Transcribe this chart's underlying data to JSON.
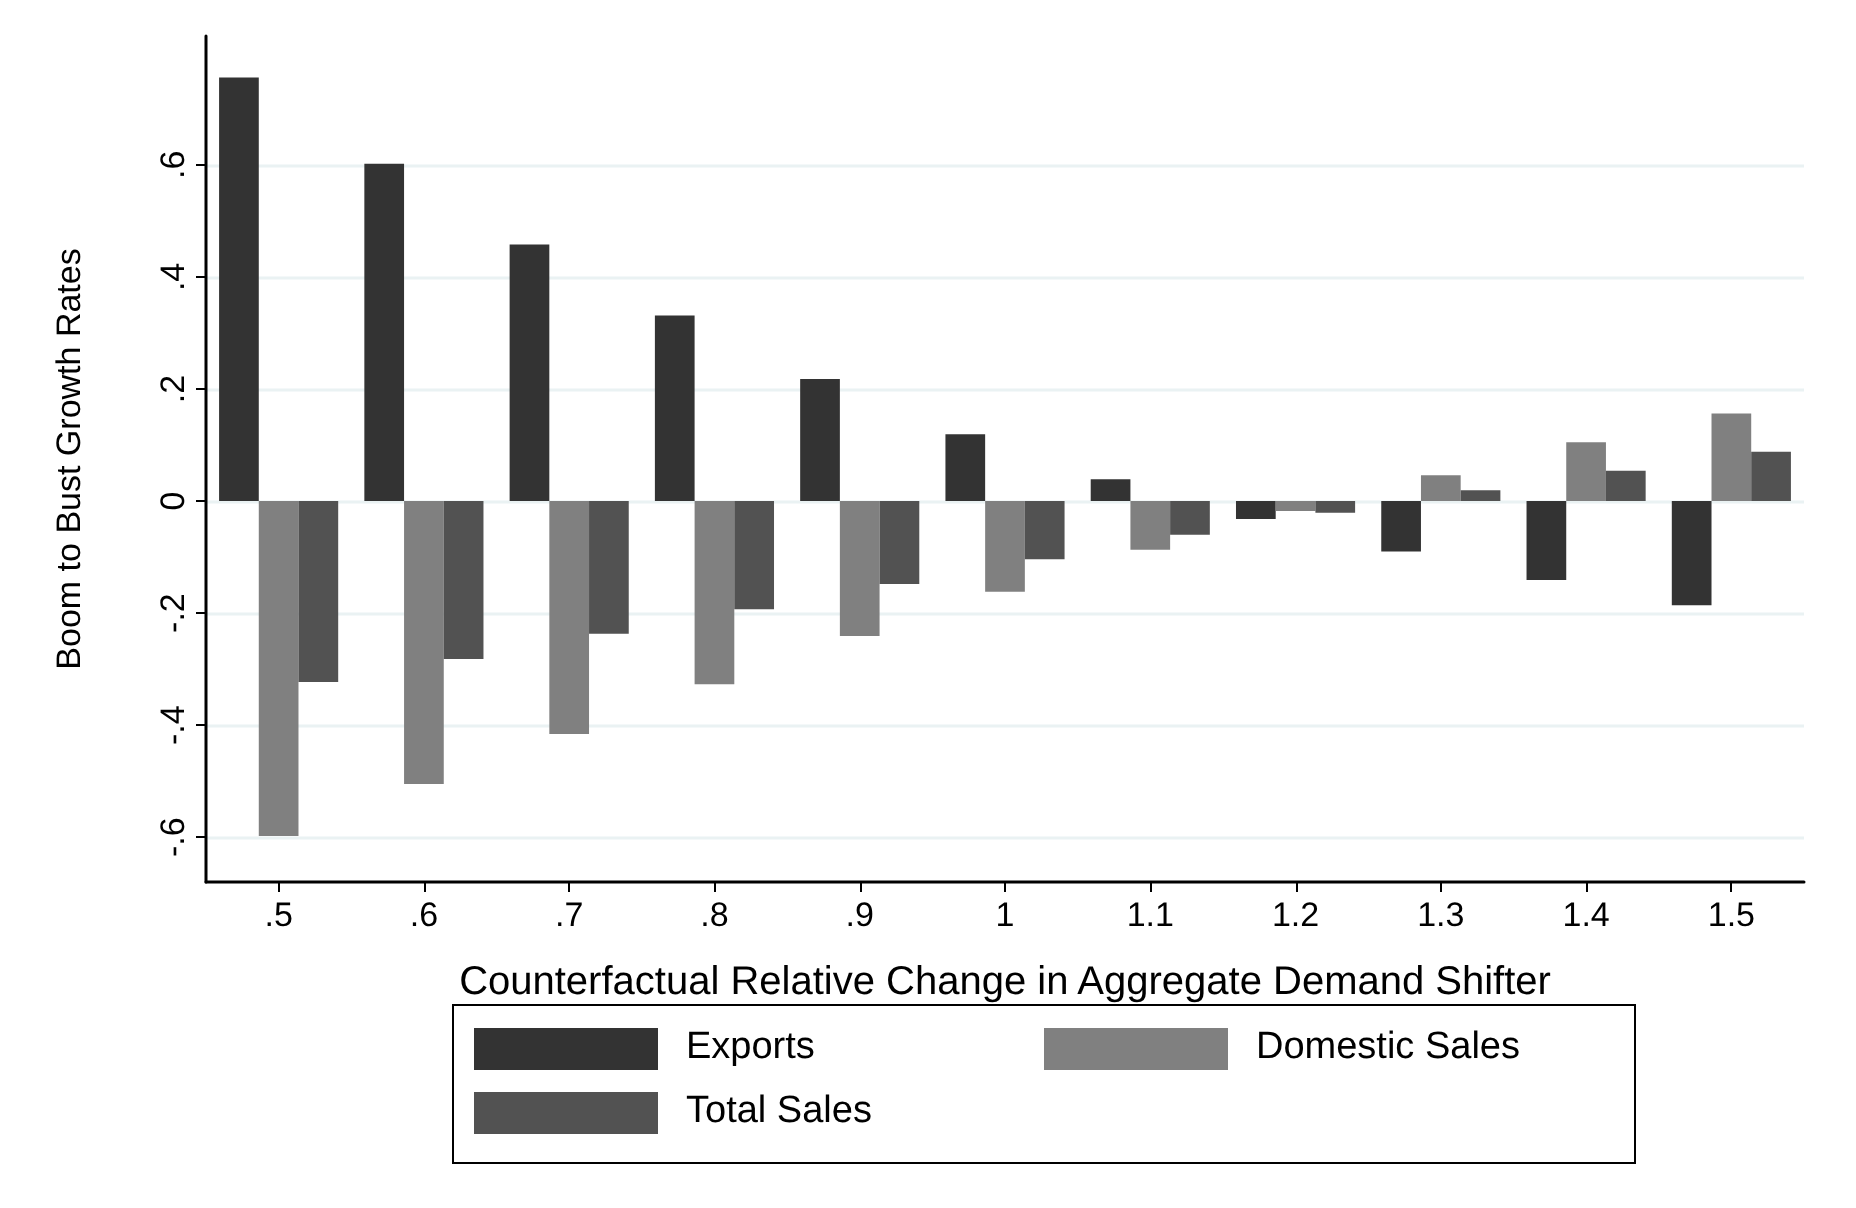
{
  "chart_data": {
    "type": "bar",
    "xlabel": "Counterfactual Relative Change in Aggregate Demand Shifter",
    "ylabel": "Boom to Bust Growth Rates",
    "categories": [
      ".5",
      ".6",
      ".7",
      ".8",
      ".9",
      "1",
      "1.1",
      "1.2",
      "1.3",
      "1.4",
      "1.5"
    ],
    "series": [
      {
        "name": "Exports",
        "color": "#333333",
        "values": [
          0.756,
          0.602,
          0.458,
          0.331,
          0.218,
          0.119,
          0.039,
          -0.032,
          -0.09,
          -0.141,
          -0.186
        ]
      },
      {
        "name": "Domestic Sales",
        "color": "#808080",
        "values": [
          -0.598,
          -0.505,
          -0.416,
          -0.327,
          -0.241,
          -0.162,
          -0.087,
          -0.018,
          0.046,
          0.105,
          0.156
        ]
      },
      {
        "name": "Total Sales",
        "color": "#525252",
        "values": [
          -0.323,
          -0.282,
          -0.237,
          -0.193,
          -0.148,
          -0.104,
          -0.06,
          -0.021,
          0.019,
          0.054,
          0.088
        ]
      }
    ],
    "ylim": [
      -0.68,
      0.83
    ],
    "yticks": [
      {
        "value": -0.6,
        "label": "-.6"
      },
      {
        "value": -0.4,
        "label": "-.4"
      },
      {
        "value": -0.2,
        "label": "-.2"
      },
      0,
      {
        "value": 0.2,
        "label": ".2"
      },
      {
        "value": 0.4,
        "label": ".4"
      },
      {
        "value": 0.6,
        "label": ".6"
      }
    ],
    "grid": "y",
    "legend": "bottom"
  }
}
